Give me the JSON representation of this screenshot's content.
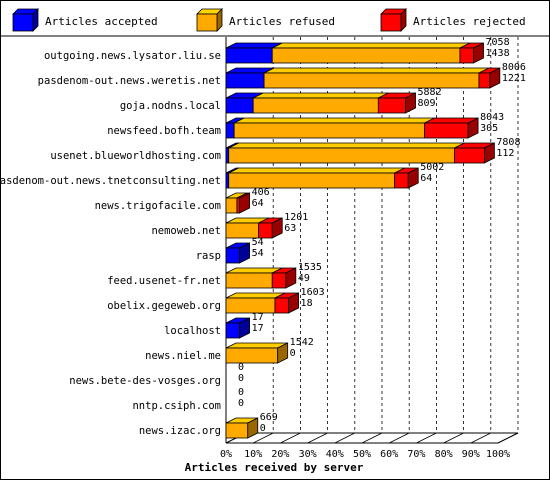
{
  "chart_data": {
    "type": "bar",
    "orientation": "horizontal",
    "stacked": true,
    "three_d": true,
    "x_label": "Articles received by server",
    "x_unit": "percent",
    "xlim": [
      0,
      100
    ],
    "x_ticks": [
      "0%",
      "10%",
      "20%",
      "30%",
      "40%",
      "50%",
      "60%",
      "70%",
      "80%",
      "90%",
      "100%"
    ],
    "grid": true,
    "legend_position": "top",
    "legend": [
      {
        "name": "Articles accepted",
        "color": "#0000ff"
      },
      {
        "name": "Articles refused",
        "color": "#ffaa00"
      },
      {
        "name": "Articles rejected",
        "color": "#ff0000"
      }
    ],
    "categories": [
      "outgoing.news.lysator.liu.se",
      "pasdenom-out.news.weretis.net",
      "goja.nodns.local",
      "newsfeed.bofh.team",
      "usenet.blueworldhosting.com",
      "pasdenom-out.news.tnetconsulting.net",
      "news.trigofacile.com",
      "nemoweb.net",
      "rasp",
      "feed.usenet-fr.net",
      "obelix.gegeweb.org",
      "localhost",
      "news.niel.me",
      "news.bete-des-vosges.org",
      "nntp.csiph.com",
      "news.izac.org"
    ],
    "series": [
      {
        "name": "Articles accepted",
        "values": [
          17,
          14,
          10,
          3,
          1,
          1,
          0,
          0,
          5,
          0,
          0,
          5,
          0,
          0,
          0,
          0
        ]
      },
      {
        "name": "Articles refused",
        "values": [
          69,
          79,
          46,
          70,
          83,
          61,
          4,
          12,
          0,
          17,
          18,
          0,
          19,
          0,
          0,
          8
        ]
      },
      {
        "name": "Articles rejected",
        "values": [
          5,
          4,
          10,
          16,
          11,
          5,
          1,
          5,
          0,
          5,
          5,
          0,
          0,
          0,
          0,
          0
        ]
      }
    ],
    "value_labels": [
      [
        "7058",
        "1438"
      ],
      [
        "8006",
        "1221"
      ],
      [
        "5882",
        "809"
      ],
      [
        "8043",
        "305"
      ],
      [
        "7808",
        "112"
      ],
      [
        "5002",
        "64"
      ],
      [
        "406",
        "64"
      ],
      [
        "1201",
        "63"
      ],
      [
        "54",
        "54"
      ],
      [
        "1535",
        "49"
      ],
      [
        "1603",
        "18"
      ],
      [
        "17",
        "17"
      ],
      [
        "1542",
        "0"
      ],
      [
        "0",
        "0"
      ],
      [
        "0",
        "0"
      ],
      [
        "669",
        "0"
      ]
    ]
  }
}
